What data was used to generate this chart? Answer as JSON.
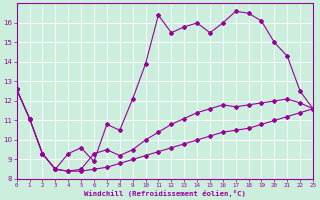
{
  "xlabel": "Windchill (Refroidissement éolien,°C)",
  "bg_color": "#cceedd",
  "line_color": "#990099",
  "grid_color": "#aaddcc",
  "xmin": 0,
  "xmax": 23,
  "ymin": 8,
  "ymax": 17,
  "yticks": [
    8,
    9,
    10,
    11,
    12,
    13,
    14,
    15,
    16
  ],
  "xtick_labels": [
    "0",
    "1",
    "2",
    "3",
    "4",
    "5",
    "6",
    "7",
    "8",
    "9",
    "10",
    "11",
    "12",
    "13",
    "14",
    "15",
    "16",
    "17",
    "18",
    "19",
    "20",
    "21",
    "22",
    "23"
  ],
  "series1_x": [
    0,
    1,
    2,
    3,
    4,
    5,
    6,
    7,
    8,
    9,
    10,
    11,
    12,
    13,
    14,
    15,
    16,
    17,
    18,
    19,
    20,
    21,
    22,
    23
  ],
  "series1_y": [
    12.6,
    11.1,
    9.3,
    8.5,
    9.3,
    9.6,
    8.9,
    10.8,
    10.5,
    12.1,
    13.9,
    16.4,
    15.5,
    15.8,
    16.0,
    15.5,
    16.0,
    16.6,
    16.5,
    16.1,
    15.0,
    14.3,
    12.5,
    11.6
  ],
  "series2_x": [
    0,
    1,
    2,
    3,
    4,
    5,
    6,
    7,
    8,
    9,
    10,
    11,
    12,
    13,
    14,
    15,
    16,
    17,
    18,
    19,
    20,
    21,
    22,
    23
  ],
  "series2_y": [
    12.6,
    11.1,
    9.3,
    8.5,
    8.4,
    8.5,
    9.3,
    9.5,
    9.2,
    9.5,
    10.0,
    10.4,
    10.8,
    11.1,
    11.4,
    11.6,
    11.8,
    11.7,
    11.8,
    11.9,
    12.0,
    12.1,
    11.9,
    11.6
  ],
  "series3_x": [
    0,
    1,
    2,
    3,
    4,
    5,
    6,
    7,
    8,
    9,
    10,
    11,
    12,
    13,
    14,
    15,
    16,
    17,
    18,
    19,
    20,
    21,
    22,
    23
  ],
  "series3_y": [
    12.6,
    11.1,
    9.3,
    8.5,
    8.4,
    8.4,
    8.5,
    8.6,
    8.8,
    9.0,
    9.2,
    9.4,
    9.6,
    9.8,
    10.0,
    10.2,
    10.4,
    10.5,
    10.6,
    10.8,
    11.0,
    11.2,
    11.4,
    11.6
  ]
}
